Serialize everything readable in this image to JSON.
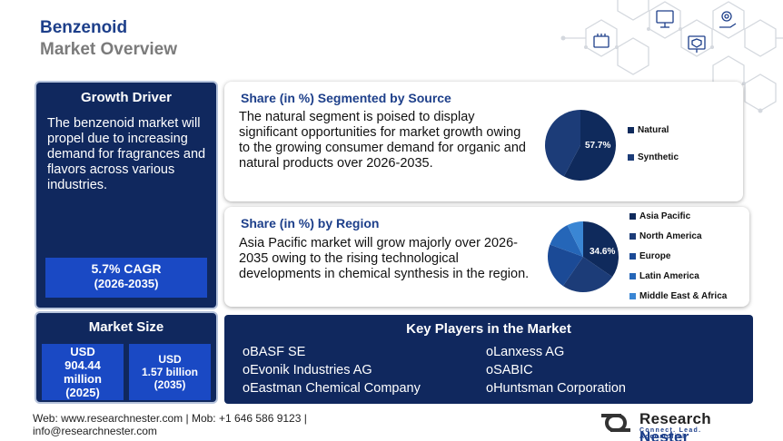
{
  "header": {
    "title_line1": "Benzenoid",
    "title_line2": "Market Overview"
  },
  "growth_driver": {
    "heading": "Growth Driver",
    "text": "The benzenoid market will propel due to increasing demand for fragrances and flavors across various industries.",
    "cagr": "5.7% CAGR",
    "period": "(2026-2035)"
  },
  "market_size": {
    "heading": "Market Size",
    "value_2025": {
      "line1": "USD",
      "line2": "904.44",
      "line3": "million",
      "line4": "(2025)"
    },
    "value_2035": {
      "line1": "USD",
      "line2": "1.57 billion",
      "line3": "(2035)"
    }
  },
  "source_panel": {
    "heading": "Share (in %) Segmented by Source",
    "text": "The natural segment is poised to display significant opportunities for market growth owing to the growing consumer demand for organic and natural products over 2026-2035.",
    "pie_label": "57.7%"
  },
  "region_panel": {
    "heading": "Share (in %) by Region",
    "text": "Asia Pacific market will grow majorly over 2026-2035 owing to the rising technological developments in chemical synthesis in the region.",
    "pie_label": "34.6%"
  },
  "chart_data": [
    {
      "type": "pie",
      "title": "Share (in %) Segmented by Source",
      "categories": [
        "Natural",
        "Synthetic"
      ],
      "values": [
        57.7,
        42.3
      ],
      "colors": [
        "#0f2a5c",
        "#1c3c78"
      ],
      "legend": "right"
    },
    {
      "type": "pie",
      "title": "Share (in %) by Region",
      "categories": [
        "Asia Pacific",
        "North America",
        "Europe",
        "Latin America",
        "Middle East & Africa"
      ],
      "values": [
        34.6,
        25,
        21,
        12,
        7.4
      ],
      "colors": [
        "#0f2a5c",
        "#1c3c78",
        "#1b4a96",
        "#2566b8",
        "#3a86d4"
      ],
      "legend": "right"
    }
  ],
  "key_players": {
    "heading": "Key Players in the Market",
    "bullet": "o",
    "left": [
      "BASF SE",
      "Evonik Industries AG",
      "Eastman Chemical Company"
    ],
    "right": [
      "Lanxess AG",
      "SABIC",
      "Huntsman Corporation"
    ]
  },
  "footer": {
    "line1": "Web: www.researchnester.com | Mob: +1 646 586 9123 |",
    "line2": "info@researchnester.com"
  },
  "logo": {
    "name_part1": "Research ",
    "name_part2": "Nester",
    "tagline": "Connect. Lead. Accomplish"
  }
}
